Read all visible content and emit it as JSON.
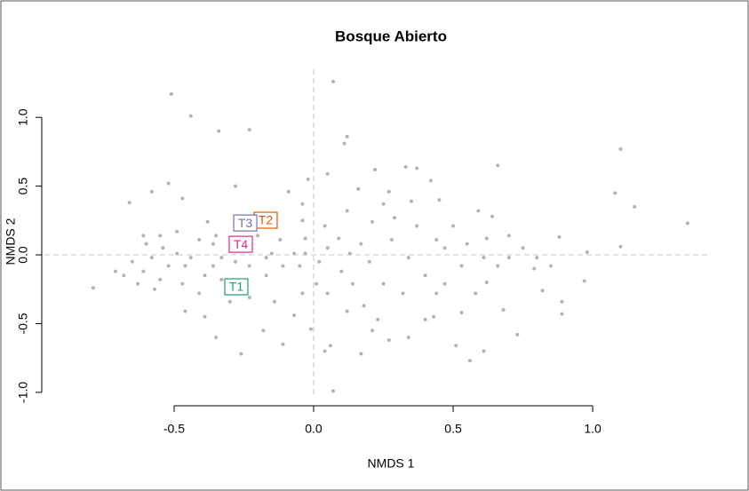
{
  "chart_data": {
    "type": "scatter",
    "title": "Bosque Abierto",
    "x_label": "NMDS 1",
    "y_label": "NMDS 2",
    "xlim": [
      -0.85,
      1.42
    ],
    "ylim": [
      -1.02,
      1.35
    ],
    "xticks": [
      -0.5,
      {
        "value": 0,
        "label": "0.0"
      },
      0.5,
      {
        "value": 1,
        "label": "1.0"
      }
    ],
    "yticks": [
      {
        "value": -1,
        "label": "-1.0"
      },
      -0.5,
      {
        "value": 0,
        "label": "0.0"
      },
      0.5,
      {
        "value": 1,
        "label": "1.0"
      }
    ],
    "reference_lines": {
      "x": 0,
      "y": 0
    },
    "color": "#b3b3b3",
    "x": [
      -0.51,
      -0.44,
      -0.34,
      -0.23,
      0.07,
      0.12,
      0.11,
      1.1,
      1.08,
      1.15,
      1.34,
      1.1,
      0.98,
      0.97,
      0.88,
      0.89,
      0.89,
      0.66,
      0.73,
      0.61,
      0.56,
      0.51,
      0.07,
      0.06,
      0.04,
      0.17,
      -0.26,
      -0.35,
      -0.11,
      -0.18,
      -0.79,
      -0.66,
      -0.58,
      -0.47,
      -0.52,
      -0.28,
      -0.02,
      0.05,
      0.22,
      0.33,
      0.37,
      0.42,
      0.27,
      0.16,
      0.35,
      0.45,
      0.59,
      0.64,
      0.7,
      0.62,
      0.79,
      0.82,
      0.62,
      0.68,
      0.53,
      0.4,
      0.43,
      0.27,
      0.21,
      0.18,
      0.14,
      0.1,
      0.09,
      0.12,
      0.21,
      0.28,
      0.34,
      0.4,
      0.47,
      0.53,
      0.32,
      0.25,
      0.44,
      0.5,
      0.37,
      0.29,
      0.17,
      0.2,
      0.13,
      0.55,
      0.61,
      0.7,
      0.75,
      0.66,
      -0.04,
      -0.03,
      -0.05,
      0.01,
      -0.04,
      -0.07,
      -0.01,
      -0.14,
      -0.17,
      -0.11,
      -0.12,
      -0.17,
      -0.23,
      -0.23,
      -0.3,
      -0.39,
      -0.46,
      -0.41,
      -0.47,
      -0.55,
      -0.61,
      -0.68,
      -0.65,
      -0.58,
      -0.6,
      -0.54,
      -0.49,
      -0.44,
      -0.41,
      -0.36,
      -0.33,
      -0.36,
      -0.38,
      -0.35,
      -0.55,
      -0.63,
      -0.57,
      -0.52,
      -0.46,
      -0.39,
      -0.33,
      -0.28,
      -0.25,
      -0.2,
      -0.15,
      -0.07,
      -0.03,
      0.02,
      0.05,
      0.05,
      0.12,
      0.23,
      0.34,
      0.47,
      0.58,
      0.85,
      0.8,
      0.44,
      0.25,
      0.04,
      -0.09,
      -0.04,
      -0.49,
      -0.61,
      -0.71
    ],
    "y": [
      1.17,
      1.01,
      0.9,
      0.91,
      1.26,
      0.86,
      0.81,
      0.77,
      0.45,
      0.35,
      0.23,
      0.06,
      0.02,
      -0.19,
      0.13,
      -0.34,
      -0.43,
      0.65,
      -0.58,
      -0.7,
      -0.77,
      -0.66,
      -0.99,
      -0.66,
      -0.7,
      -0.72,
      -0.72,
      -0.6,
      -0.65,
      -0.55,
      -0.24,
      0.38,
      0.46,
      0.41,
      0.52,
      0.5,
      0.55,
      0.59,
      0.62,
      0.64,
      0.63,
      0.54,
      0.46,
      0.48,
      0.39,
      0.4,
      0.32,
      0.28,
      0.14,
      0.12,
      -0.1,
      -0.26,
      -0.2,
      -0.4,
      -0.42,
      -0.47,
      -0.45,
      -0.62,
      -0.55,
      -0.37,
      -0.21,
      -0.12,
      0.12,
      0.32,
      0.24,
      0.11,
      -0.02,
      -0.15,
      0.05,
      -0.08,
      -0.28,
      -0.21,
      -0.28,
      0.21,
      0.21,
      0.27,
      0.08,
      -0.05,
      0.01,
      0.08,
      -0.02,
      -0.02,
      0.05,
      -0.08,
      0.25,
      0.12,
      -0.08,
      -0.21,
      -0.28,
      -0.44,
      -0.54,
      -0.34,
      -0.15,
      -0.08,
      0.11,
      -0.02,
      -0.08,
      -0.31,
      -0.34,
      -0.45,
      -0.41,
      -0.28,
      -0.21,
      -0.18,
      -0.12,
      -0.15,
      -0.05,
      -0.02,
      0.08,
      0.05,
      0.01,
      -0.02,
      0.11,
      0.08,
      -0.02,
      -0.08,
      0.24,
      0.14,
      0.14,
      -0.21,
      -0.25,
      -0.08,
      -0.08,
      -0.15,
      -0.18,
      -0.05,
      0.05,
      0.14,
      0.01,
      0.01,
      0.01,
      -0.05,
      0.05,
      -0.28,
      -0.41,
      -0.47,
      -0.6,
      -0.21,
      -0.28,
      -0.08,
      -0.02,
      0.11,
      0.37,
      0.21,
      0.46,
      0.37,
      0.17,
      0.14,
      -0.12
    ],
    "annotations": [
      {
        "text": "T1",
        "x": -0.277,
        "y": -0.232,
        "color": "#1b9e77"
      },
      {
        "text": "T2",
        "x": -0.172,
        "y": 0.252,
        "color": "#d95f02"
      },
      {
        "text": "T3",
        "x": -0.245,
        "y": 0.232,
        "color": "#7570b3"
      },
      {
        "text": "T4",
        "x": -0.261,
        "y": 0.077,
        "color": "#e7298a"
      }
    ]
  }
}
